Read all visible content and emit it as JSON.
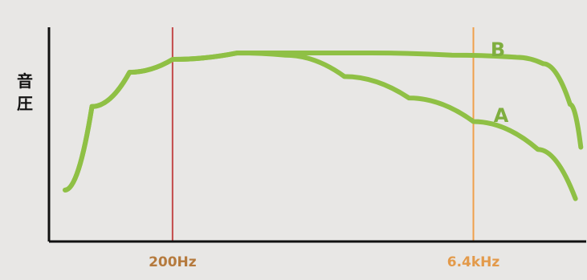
{
  "chart_data": {
    "type": "line",
    "ylabel": "音\n圧",
    "xlabel": "",
    "colors": {
      "background": "#e8e7e5",
      "axis": "#111111",
      "curve": "#8fc045",
      "label_text": "#7fae3f",
      "marker_200hz": "#c34a4a",
      "marker_6_4khz": "#f0a04b",
      "marker_200hz_text": "#b57a3d",
      "marker_6_4khz_text": "#e39a4a"
    },
    "markers": [
      {
        "id": "200hz",
        "label": "200Hz",
        "x": 0.23
      },
      {
        "id": "6_4khz",
        "label": "6.4kHz",
        "x": 0.79
      }
    ],
    "series": [
      {
        "name": "A",
        "points": [
          [
            0.03,
            0.24
          ],
          [
            0.08,
            0.63
          ],
          [
            0.15,
            0.79
          ],
          [
            0.23,
            0.85
          ],
          [
            0.35,
            0.88
          ],
          [
            0.44,
            0.87
          ],
          [
            0.55,
            0.77
          ],
          [
            0.67,
            0.67
          ],
          [
            0.79,
            0.56
          ],
          [
            0.91,
            0.43
          ],
          [
            0.98,
            0.2
          ]
        ]
      },
      {
        "name": "B",
        "points": [
          [
            0.03,
            0.24
          ],
          [
            0.08,
            0.63
          ],
          [
            0.15,
            0.79
          ],
          [
            0.23,
            0.85
          ],
          [
            0.35,
            0.88
          ],
          [
            0.44,
            0.88
          ],
          [
            0.6,
            0.88
          ],
          [
            0.75,
            0.87
          ],
          [
            0.87,
            0.86
          ],
          [
            0.92,
            0.83
          ],
          [
            0.97,
            0.64
          ],
          [
            0.99,
            0.44
          ]
        ]
      }
    ]
  }
}
